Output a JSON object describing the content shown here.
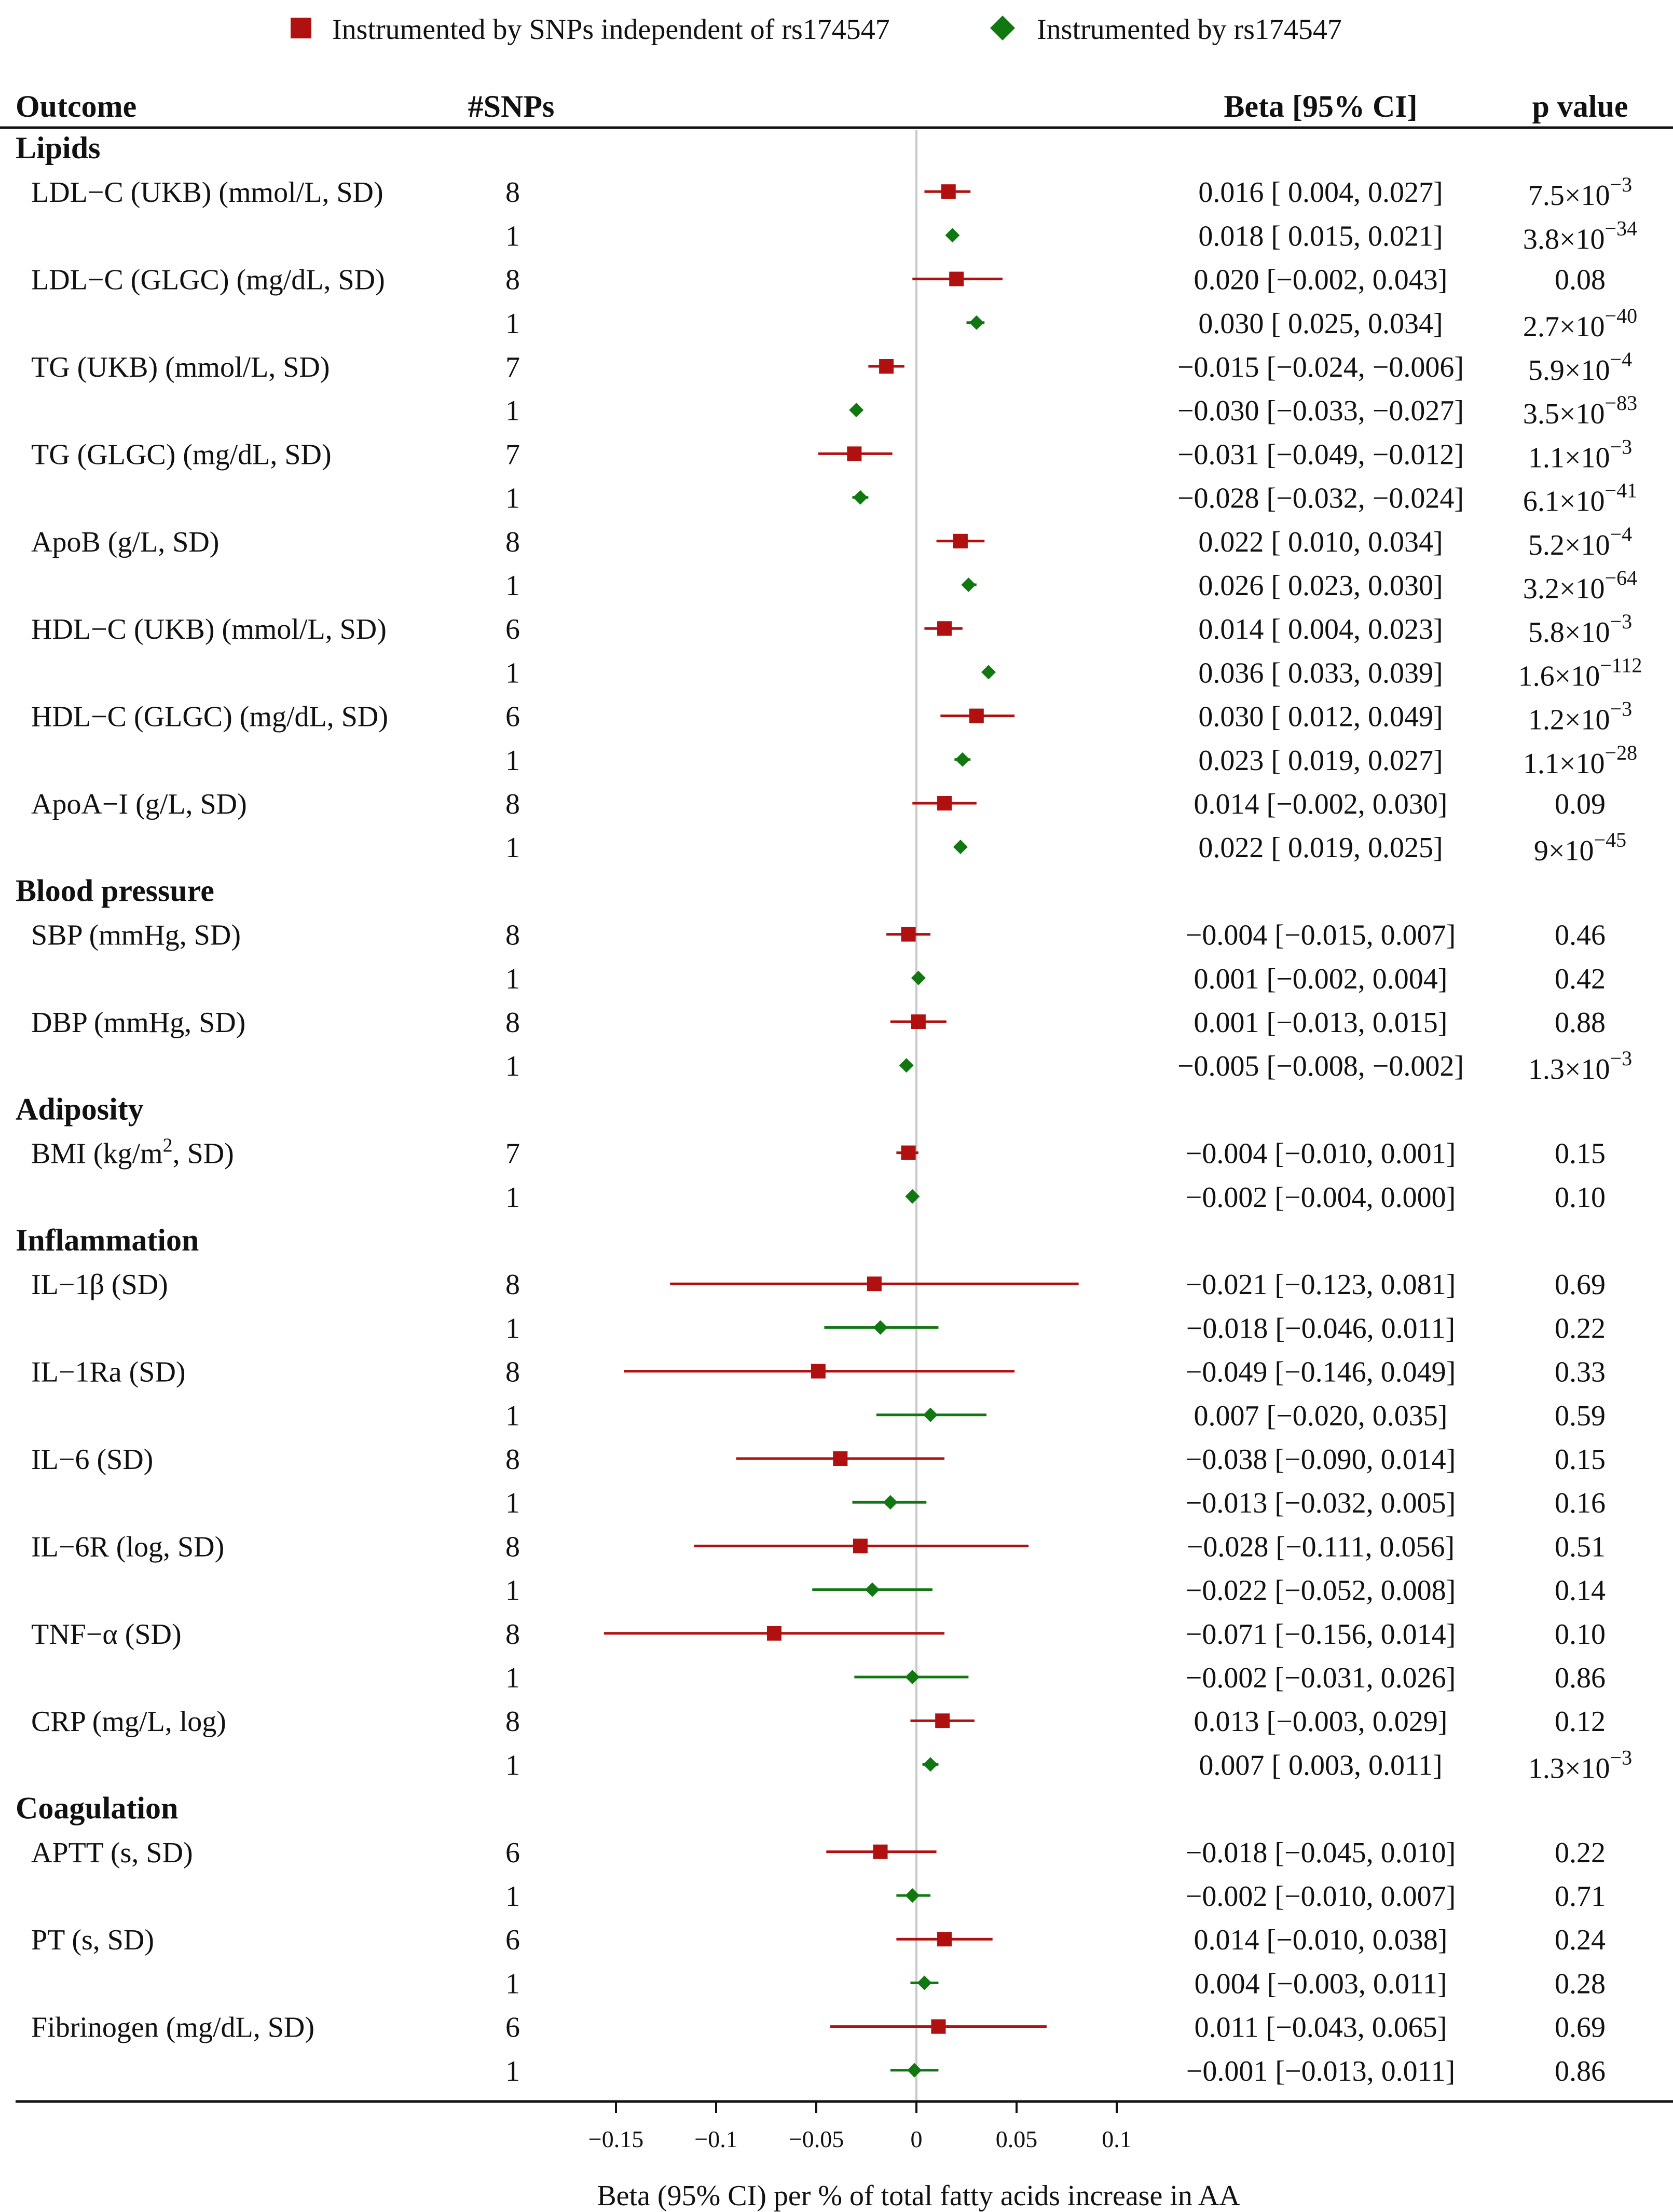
{
  "chart_data": {
    "type": "forest",
    "legend": {
      "position": "top",
      "entries": [
        {
          "label": "Instrumented by SNPs independent of rs174547",
          "marker": "square",
          "color": "#B01010"
        },
        {
          "label": "Instrumented by rs174547",
          "marker": "diamond",
          "color": "#117711"
        }
      ]
    },
    "columns": {
      "outcome": "Outcome",
      "nsnps": "#SNPs",
      "beta": "Beta [95% CI]",
      "p": "p value"
    },
    "xlabel": "Beta (95% CI) per % of total fatty acids increase in AA",
    "xlim": [
      -0.165,
      0.105
    ],
    "xticks": [
      -0.15,
      -0.1,
      -0.05,
      0,
      0.05,
      0.1
    ],
    "xtick_labels": [
      "−0.15",
      "−0.1",
      "−0.05",
      "0",
      "0.05",
      "0.1"
    ],
    "reference_line": 0,
    "colors": {
      "series1": "#B01010",
      "series2": "#117711",
      "refline": "#C8C8C8",
      "axis": "#111111"
    },
    "groups": [
      {
        "name": "Lipids",
        "outcomes": [
          {
            "label": "LDL−C (UKB) (mmol/L, SD)",
            "rows": [
              {
                "series": 1,
                "n": "8",
                "beta": 0.016,
                "lo": 0.004,
                "hi": 0.027,
                "ci_text": "0.016 [ 0.004,  0.027]",
                "p": {
                  "m": "7.5",
                  "e": "−3"
                }
              },
              {
                "series": 2,
                "n": "1",
                "beta": 0.018,
                "lo": 0.015,
                "hi": 0.021,
                "ci_text": "0.018 [ 0.015,  0.021]",
                "p": {
                  "m": "3.8",
                  "e": "−34"
                }
              }
            ]
          },
          {
            "label": "LDL−C (GLGC) (mg/dL, SD)",
            "rows": [
              {
                "series": 1,
                "n": "8",
                "beta": 0.02,
                "lo": -0.002,
                "hi": 0.043,
                "ci_text": "0.020 [−0.002,  0.043]",
                "p": {
                  "t": "0.08"
                }
              },
              {
                "series": 2,
                "n": "1",
                "beta": 0.03,
                "lo": 0.025,
                "hi": 0.034,
                "ci_text": "0.030 [ 0.025,  0.034]",
                "p": {
                  "m": "2.7",
                  "e": "−40"
                }
              }
            ]
          },
          {
            "label": "TG (UKB) (mmol/L, SD)",
            "rows": [
              {
                "series": 1,
                "n": "7",
                "beta": -0.015,
                "lo": -0.024,
                "hi": -0.006,
                "ci_text": "−0.015 [−0.024, −0.006]",
                "p": {
                  "m": "5.9",
                  "e": "−4"
                }
              },
              {
                "series": 2,
                "n": "1",
                "beta": -0.03,
                "lo": -0.033,
                "hi": -0.027,
                "ci_text": "−0.030 [−0.033, −0.027]",
                "p": {
                  "m": "3.5",
                  "e": "−83"
                }
              }
            ]
          },
          {
            "label": "TG (GLGC) (mg/dL, SD)",
            "rows": [
              {
                "series": 1,
                "n": "7",
                "beta": -0.031,
                "lo": -0.049,
                "hi": -0.012,
                "ci_text": "−0.031 [−0.049, −0.012]",
                "p": {
                  "m": "1.1",
                  "e": "−3"
                }
              },
              {
                "series": 2,
                "n": "1",
                "beta": -0.028,
                "lo": -0.032,
                "hi": -0.024,
                "ci_text": "−0.028 [−0.032, −0.024]",
                "p": {
                  "m": "6.1",
                  "e": "−41"
                }
              }
            ]
          },
          {
            "label": "ApoB (g/L, SD)",
            "rows": [
              {
                "series": 1,
                "n": "8",
                "beta": 0.022,
                "lo": 0.01,
                "hi": 0.034,
                "ci_text": "0.022 [ 0.010,  0.034]",
                "p": {
                  "m": "5.2",
                  "e": "−4"
                }
              },
              {
                "series": 2,
                "n": "1",
                "beta": 0.026,
                "lo": 0.023,
                "hi": 0.03,
                "ci_text": "0.026 [ 0.023,  0.030]",
                "p": {
                  "m": "3.2",
                  "e": "−64"
                }
              }
            ]
          },
          {
            "label": "HDL−C (UKB) (mmol/L, SD)",
            "rows": [
              {
                "series": 1,
                "n": "6",
                "beta": 0.014,
                "lo": 0.004,
                "hi": 0.023,
                "ci_text": "0.014 [ 0.004,  0.023]",
                "p": {
                  "m": "5.8",
                  "e": "−3"
                }
              },
              {
                "series": 2,
                "n": "1",
                "beta": 0.036,
                "lo": 0.033,
                "hi": 0.039,
                "ci_text": "0.036 [ 0.033,  0.039]",
                "p": {
                  "m": "1.6",
                  "e": "−112"
                }
              }
            ]
          },
          {
            "label": "HDL−C (GLGC) (mg/dL, SD)",
            "rows": [
              {
                "series": 1,
                "n": "6",
                "beta": 0.03,
                "lo": 0.012,
                "hi": 0.049,
                "ci_text": "0.030 [ 0.012,  0.049]",
                "p": {
                  "m": "1.2",
                  "e": "−3"
                }
              },
              {
                "series": 2,
                "n": "1",
                "beta": 0.023,
                "lo": 0.019,
                "hi": 0.027,
                "ci_text": "0.023 [ 0.019,  0.027]",
                "p": {
                  "m": "1.1",
                  "e": "−28"
                }
              }
            ]
          },
          {
            "label": "ApoA−I (g/L, SD)",
            "rows": [
              {
                "series": 1,
                "n": "8",
                "beta": 0.014,
                "lo": -0.002,
                "hi": 0.03,
                "ci_text": "0.014 [−0.002,  0.030]",
                "p": {
                  "t": "0.09"
                }
              },
              {
                "series": 2,
                "n": "1",
                "beta": 0.022,
                "lo": 0.019,
                "hi": 0.025,
                "ci_text": "0.022 [ 0.019,  0.025]",
                "p": {
                  "m": "9",
                  "e": "−45"
                }
              }
            ]
          }
        ]
      },
      {
        "name": "Blood pressure",
        "outcomes": [
          {
            "label": "SBP (mmHg, SD)",
            "rows": [
              {
                "series": 1,
                "n": "8",
                "beta": -0.004,
                "lo": -0.015,
                "hi": 0.007,
                "ci_text": "−0.004 [−0.015,  0.007]",
                "p": {
                  "t": "0.46"
                }
              },
              {
                "series": 2,
                "n": "1",
                "beta": 0.001,
                "lo": -0.002,
                "hi": 0.004,
                "ci_text": "0.001 [−0.002,  0.004]",
                "p": {
                  "t": "0.42"
                }
              }
            ]
          },
          {
            "label": "DBP (mmHg, SD)",
            "rows": [
              {
                "series": 1,
                "n": "8",
                "beta": 0.001,
                "lo": -0.013,
                "hi": 0.015,
                "ci_text": "0.001 [−0.013,  0.015]",
                "p": {
                  "t": "0.88"
                }
              },
              {
                "series": 2,
                "n": "1",
                "beta": -0.005,
                "lo": -0.008,
                "hi": -0.002,
                "ci_text": "−0.005 [−0.008, −0.002]",
                "p": {
                  "m": "1.3",
                  "e": "−3"
                }
              }
            ]
          }
        ]
      },
      {
        "name": "Adiposity",
        "outcomes": [
          {
            "label": "BMI (kg/m",
            "label_sup": "2",
            "label_post": ", SD)",
            "rows": [
              {
                "series": 1,
                "n": "7",
                "beta": -0.004,
                "lo": -0.01,
                "hi": 0.001,
                "ci_text": "−0.004 [−0.010,  0.001]",
                "p": {
                  "t": "0.15"
                }
              },
              {
                "series": 2,
                "n": "1",
                "beta": -0.002,
                "lo": -0.004,
                "hi": 0.0,
                "ci_text": "−0.002 [−0.004,  0.000]",
                "p": {
                  "t": "0.10"
                }
              }
            ]
          }
        ]
      },
      {
        "name": "Inflammation",
        "outcomes": [
          {
            "label": "IL−1β (SD)",
            "rows": [
              {
                "series": 1,
                "n": "8",
                "beta": -0.021,
                "lo": -0.123,
                "hi": 0.081,
                "ci_text": "−0.021 [−0.123,  0.081]",
                "p": {
                  "t": "0.69"
                }
              },
              {
                "series": 2,
                "n": "1",
                "beta": -0.018,
                "lo": -0.046,
                "hi": 0.011,
                "ci_text": "−0.018 [−0.046,  0.011]",
                "p": {
                  "t": "0.22"
                }
              }
            ]
          },
          {
            "label": "IL−1Ra (SD)",
            "rows": [
              {
                "series": 1,
                "n": "8",
                "beta": -0.049,
                "lo": -0.146,
                "hi": 0.049,
                "ci_text": "−0.049 [−0.146,  0.049]",
                "p": {
                  "t": "0.33"
                }
              },
              {
                "series": 2,
                "n": "1",
                "beta": 0.007,
                "lo": -0.02,
                "hi": 0.035,
                "ci_text": "0.007 [−0.020,  0.035]",
                "p": {
                  "t": "0.59"
                }
              }
            ]
          },
          {
            "label": "IL−6 (SD)",
            "rows": [
              {
                "series": 1,
                "n": "8",
                "beta": -0.038,
                "lo": -0.09,
                "hi": 0.014,
                "ci_text": "−0.038 [−0.090,  0.014]",
                "p": {
                  "t": "0.15"
                }
              },
              {
                "series": 2,
                "n": "1",
                "beta": -0.013,
                "lo": -0.032,
                "hi": 0.005,
                "ci_text": "−0.013 [−0.032,  0.005]",
                "p": {
                  "t": "0.16"
                }
              }
            ]
          },
          {
            "label": "IL−6R (log, SD)",
            "rows": [
              {
                "series": 1,
                "n": "8",
                "beta": -0.028,
                "lo": -0.111,
                "hi": 0.056,
                "ci_text": "−0.028 [−0.111,  0.056]",
                "p": {
                  "t": "0.51"
                }
              },
              {
                "series": 2,
                "n": "1",
                "beta": -0.022,
                "lo": -0.052,
                "hi": 0.008,
                "ci_text": "−0.022 [−0.052,  0.008]",
                "p": {
                  "t": "0.14"
                }
              }
            ]
          },
          {
            "label": "TNF−α (SD)",
            "rows": [
              {
                "series": 1,
                "n": "8",
                "beta": -0.071,
                "lo": -0.156,
                "hi": 0.014,
                "ci_text": "−0.071 [−0.156,  0.014]",
                "p": {
                  "t": "0.10"
                }
              },
              {
                "series": 2,
                "n": "1",
                "beta": -0.002,
                "lo": -0.031,
                "hi": 0.026,
                "ci_text": "−0.002 [−0.031,  0.026]",
                "p": {
                  "t": "0.86"
                }
              }
            ]
          },
          {
            "label": "CRP (mg/L, log)",
            "rows": [
              {
                "series": 1,
                "n": "8",
                "beta": 0.013,
                "lo": -0.003,
                "hi": 0.029,
                "ci_text": "0.013 [−0.003,  0.029]",
                "p": {
                  "t": "0.12"
                }
              },
              {
                "series": 2,
                "n": "1",
                "beta": 0.007,
                "lo": 0.003,
                "hi": 0.011,
                "ci_text": "0.007 [ 0.003,  0.011]",
                "p": {
                  "m": "1.3",
                  "e": "−3"
                }
              }
            ]
          }
        ]
      },
      {
        "name": "Coagulation",
        "outcomes": [
          {
            "label": "APTT (s, SD)",
            "rows": [
              {
                "series": 1,
                "n": "6",
                "beta": -0.018,
                "lo": -0.045,
                "hi": 0.01,
                "ci_text": "−0.018 [−0.045,  0.010]",
                "p": {
                  "t": "0.22"
                }
              },
              {
                "series": 2,
                "n": "1",
                "beta": -0.002,
                "lo": -0.01,
                "hi": 0.007,
                "ci_text": "−0.002 [−0.010,  0.007]",
                "p": {
                  "t": "0.71"
                }
              }
            ]
          },
          {
            "label": "PT (s, SD)",
            "rows": [
              {
                "series": 1,
                "n": "6",
                "beta": 0.014,
                "lo": -0.01,
                "hi": 0.038,
                "ci_text": "0.014 [−0.010,  0.038]",
                "p": {
                  "t": "0.24"
                }
              },
              {
                "series": 2,
                "n": "1",
                "beta": 0.004,
                "lo": -0.003,
                "hi": 0.011,
                "ci_text": "0.004 [−0.003,  0.011]",
                "p": {
                  "t": "0.28"
                }
              }
            ]
          },
          {
            "label": "Fibrinogen (mg/dL, SD)",
            "rows": [
              {
                "series": 1,
                "n": "6",
                "beta": 0.011,
                "lo": -0.043,
                "hi": 0.065,
                "ci_text": "0.011 [−0.043,  0.065]",
                "p": {
                  "t": "0.69"
                }
              },
              {
                "series": 2,
                "n": "1",
                "beta": -0.001,
                "lo": -0.013,
                "hi": 0.011,
                "ci_text": "−0.001 [−0.013,  0.011]",
                "p": {
                  "t": "0.86"
                }
              }
            ]
          }
        ]
      }
    ]
  }
}
